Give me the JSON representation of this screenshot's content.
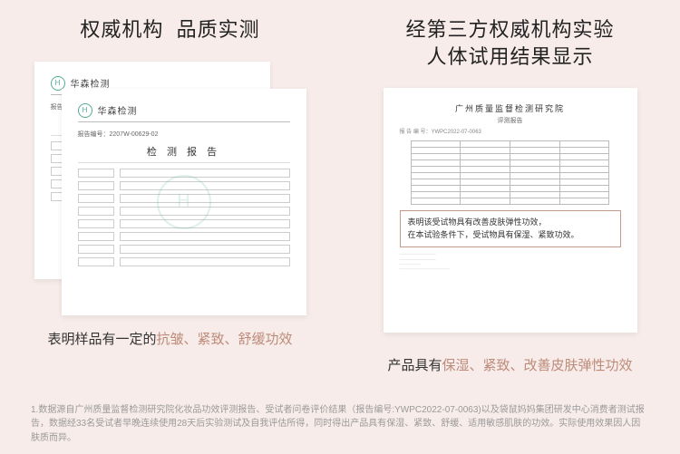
{
  "left": {
    "title_a": "权威机构",
    "title_b": "品质实测",
    "lab_logo": "H",
    "lab_name": "华森检测",
    "doc_no": "报告编号：2207W-00629-02",
    "report_title": "检 测 报 告",
    "caption_pre": "表明样品有一定的",
    "caption_hl": "抗皱、紧致、舒缓功效"
  },
  "right": {
    "title_a": "经第三方权威机构实验",
    "title_b": "人体试用结果显示",
    "hdr1": "广州质量监督检测研究院",
    "hdr2": "评测报告",
    "doc_no": "报 告 编 号：YWPC2022-07-0063",
    "callout_l1": "表明该受试物具有改善皮肤弹性功效，",
    "callout_l2": "在本试验条件下，受试物具有保湿、紧致功效。",
    "caption_pre": "产品具有",
    "caption_hl": "保湿、紧致、改善皮肤弹性功效"
  },
  "footnote": "1.数据源自广州质量监督检测研究院化妆品功效评测报告、受试者问卷评价结果（报告编号:YWPC2022-07-0063)以及袋鼠妈妈集团研发中心消费者测试报告，数据经33名受试者早晚连续使用28天后实验测试及自我评估所得，同时得出产品具有保湿、紧致、舒缓、适用敏感肌肤的功效。实际使用效果因人因肤质而异。",
  "style": {
    "bg": "#f7ece9",
    "accent": "#bd8b7a",
    "callout_border": "#c49a8e",
    "text": "#333333"
  }
}
